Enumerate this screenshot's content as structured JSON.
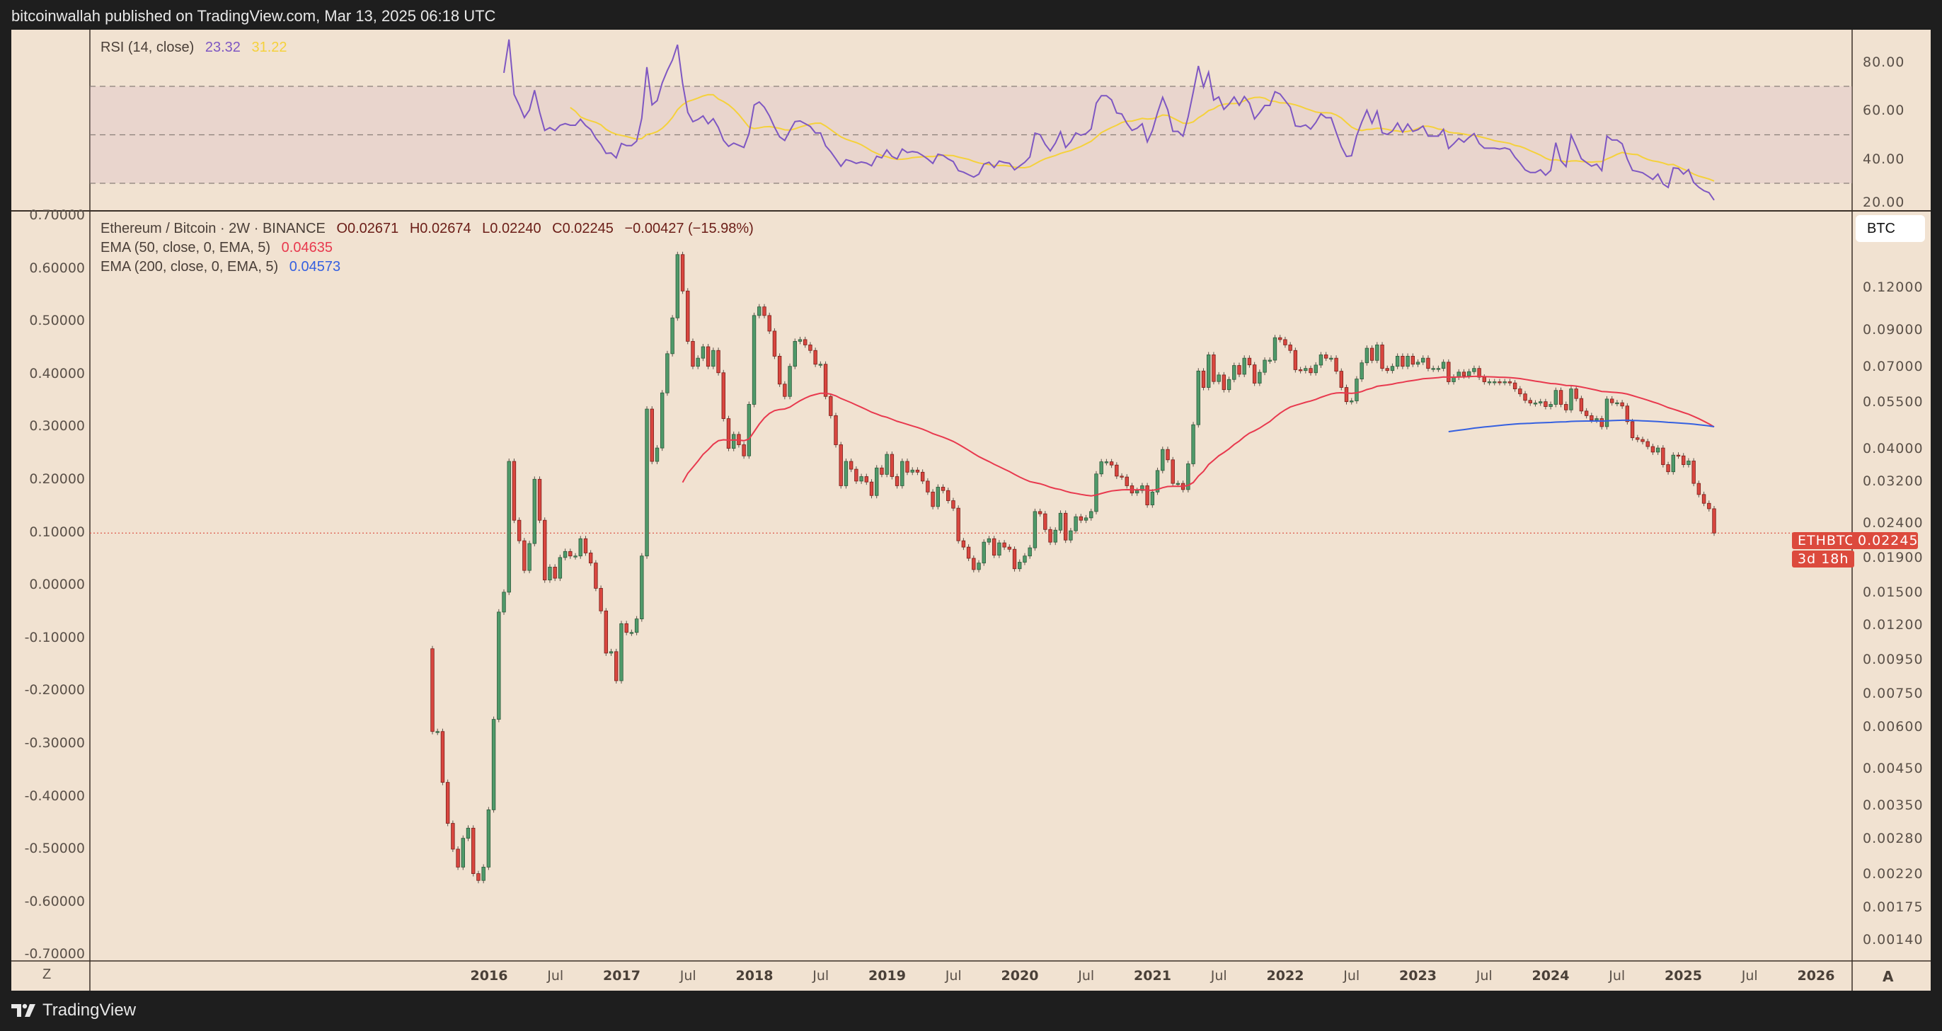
{
  "header": {
    "published": "bitcoinwallah published on TradingView.com, Mar 13, 2025 06:18 UTC"
  },
  "footer": {
    "brand": "TradingView",
    "logo_icon": "tradingview-logo-icon"
  },
  "colors": {
    "background": "#f1e2d1",
    "up": "#4f9a6a",
    "down": "#d9463f",
    "ema50": "#e8394e",
    "ema200": "#3560e0",
    "rsi": "#7e57c2",
    "rsi_ma": "#f5d13b",
    "last_price": "#dc4a3d"
  },
  "legend": {
    "rsi": {
      "label": "RSI (14, close)",
      "value": "23.32",
      "ma_value": "31.22"
    },
    "symbol": {
      "label": "Ethereum / Bitcoin · 2W · BINANCE",
      "o": "O0.02671",
      "h": "H0.02674",
      "l": "L0.02240",
      "c": "C0.02245",
      "change": "−0.00427 (−15.98%)"
    },
    "ema50": {
      "label": "EMA (50, close, 0, EMA, 5)",
      "value": "0.04635"
    },
    "ema200": {
      "label": "EMA (200, close, 0, EMA, 5)",
      "value": "0.04573"
    }
  },
  "controls": {
    "currency": "BTC",
    "z_button": "Z",
    "auto_button": "A"
  },
  "last_price": {
    "symbol": "ETHBTC",
    "price": "0.02245",
    "countdown": "3d 18h"
  },
  "chart_data": [
    {
      "type": "line",
      "title": "RSI (14, close)",
      "ylim": [
        20,
        92
      ],
      "levels": [
        70,
        50,
        30
      ],
      "tick_labels": [
        "80.00",
        "60.00",
        "40.00",
        "20.00"
      ],
      "tick_values": [
        80,
        60,
        40,
        20
      ],
      "series": [
        {
          "name": "RSI",
          "length": 14
        },
        {
          "name": "RSI MA",
          "length": 14
        }
      ]
    },
    {
      "type": "candlestick",
      "interval": "2W",
      "scale": "log",
      "first_date": "2015-08",
      "last_date": "2025-03",
      "first_open": 0.0102,
      "closes": [
        0.0058,
        0.0058,
        0.0041,
        0.0031,
        0.0026,
        0.0023,
        0.0028,
        0.003,
        0.0022,
        0.0021,
        0.0023,
        0.0034,
        0.0063,
        0.0131,
        0.015,
        0.0366,
        0.0245,
        0.0213,
        0.0174,
        0.0209,
        0.0324,
        0.0245,
        0.0163,
        0.0178,
        0.0165,
        0.019,
        0.0198,
        0.0192,
        0.0192,
        0.0216,
        0.0196,
        0.0183,
        0.0154,
        0.0132,
        0.0099,
        0.01,
        0.0082,
        0.0121,
        0.0114,
        0.0114,
        0.0125,
        0.0192,
        0.0523,
        0.0366,
        0.0401,
        0.0584,
        0.0763,
        0.0974,
        0.15,
        0.117,
        0.083,
        0.07,
        0.074,
        0.08,
        0.07,
        0.078,
        0.067,
        0.049,
        0.04,
        0.044,
        0.041,
        0.038,
        0.054,
        0.099,
        0.105,
        0.099,
        0.089,
        0.075,
        0.062,
        0.057,
        0.07,
        0.083,
        0.084,
        0.081,
        0.078,
        0.071,
        0.071,
        0.057,
        0.05,
        0.041,
        0.031,
        0.0366,
        0.0347,
        0.032,
        0.033,
        0.0318,
        0.029,
        0.035,
        0.0335,
        0.0384,
        0.033,
        0.031,
        0.0366,
        0.034,
        0.0345,
        0.034,
        0.032,
        0.0297,
        0.0269,
        0.0307,
        0.03,
        0.028,
        0.0266,
        0.0213,
        0.0204,
        0.0189,
        0.0175,
        0.0183,
        0.0211,
        0.0216,
        0.0193,
        0.021,
        0.0204,
        0.0201,
        0.0176,
        0.0184,
        0.0192,
        0.0203,
        0.026,
        0.0256,
        0.023,
        0.0211,
        0.0229,
        0.0257,
        0.0214,
        0.0228,
        0.0251,
        0.0245,
        0.0249,
        0.026,
        0.0336,
        0.0365,
        0.0365,
        0.0357,
        0.0331,
        0.0329,
        0.031,
        0.0295,
        0.03,
        0.031,
        0.0272,
        0.0297,
        0.0344,
        0.0397,
        0.037,
        0.0315,
        0.0315,
        0.0302,
        0.036,
        0.047,
        0.0678,
        0.0606,
        0.0757,
        0.0631,
        0.066,
        0.0597,
        0.064,
        0.0704,
        0.0663,
        0.074,
        0.0707,
        0.0624,
        0.0672,
        0.073,
        0.073,
        0.0851,
        0.084,
        0.081,
        0.078,
        0.0684,
        0.068,
        0.069,
        0.067,
        0.0706,
        0.0757,
        0.074,
        0.074,
        0.0677,
        0.0606,
        0.055,
        0.0553,
        0.0642,
        0.0717,
        0.0792,
        0.0729,
        0.081,
        0.069,
        0.068,
        0.07,
        0.075,
        0.07,
        0.075,
        0.071,
        0.072,
        0.074,
        0.069,
        0.069,
        0.069,
        0.072,
        0.063,
        0.065,
        0.0673,
        0.0656,
        0.0675,
        0.069,
        0.065,
        0.063,
        0.063,
        0.063,
        0.0627,
        0.063,
        0.0625,
        0.06,
        0.058,
        0.0555,
        0.0545,
        0.0545,
        0.055,
        0.0532,
        0.054,
        0.0594,
        0.054,
        0.052,
        0.06,
        0.0562,
        0.0516,
        0.05,
        0.0485,
        0.049,
        0.0464,
        0.056,
        0.0546,
        0.0546,
        0.0534,
        0.048,
        0.043,
        0.0425,
        0.0419,
        0.0405,
        0.039,
        0.0401,
        0.0358,
        0.0341,
        0.0382,
        0.038,
        0.0358,
        0.0367,
        0.0315,
        0.0292,
        0.0275,
        0.0265,
        0.02245
      ],
      "overlays": [
        {
          "name": "EMA 50",
          "length": 50
        },
        {
          "name": "EMA 200",
          "length": 200
        }
      ],
      "right_axis_labels": [
        "0.12000",
        "0.09000",
        "0.07000",
        "0.05500",
        "0.04000",
        "0.03200",
        "0.02400",
        "0.01900",
        "0.01500",
        "0.01200",
        "0.00950",
        "0.00750",
        "0.00600",
        "0.00450",
        "0.00350",
        "0.00280",
        "0.00220",
        "0.00175",
        "0.00140"
      ],
      "right_axis_values": [
        0.12,
        0.09,
        0.07,
        0.055,
        0.04,
        0.032,
        0.024,
        0.019,
        0.015,
        0.012,
        0.0095,
        0.0075,
        0.006,
        0.0045,
        0.0035,
        0.0028,
        0.0022,
        0.00175,
        0.0014
      ],
      "left_axis_labels": [
        "0.70000",
        "0.60000",
        "0.50000",
        "0.40000",
        "0.30000",
        "0.20000",
        "0.10000",
        "0.00000",
        "-0.10000",
        "-0.20000",
        "-0.30000",
        "-0.40000",
        "-0.50000",
        "-0.60000",
        "-0.70000"
      ],
      "x_tick_labels": [
        "2016",
        "Jul",
        "2017",
        "Jul",
        "2018",
        "Jul",
        "2019",
        "Jul",
        "2020",
        "Jul",
        "2021",
        "Jul",
        "2022",
        "Jul",
        "2023",
        "Jul",
        "2024",
        "Jul",
        "2025",
        "Jul",
        "2026"
      ],
      "x_tick_dates": [
        2016,
        2016.5,
        2017,
        2017.5,
        2018,
        2018.5,
        2019,
        2019.5,
        2020,
        2020.5,
        2021,
        2021.5,
        2022,
        2022.5,
        2023,
        2023.5,
        2024,
        2024.5,
        2025,
        2025.5,
        2026
      ]
    }
  ]
}
